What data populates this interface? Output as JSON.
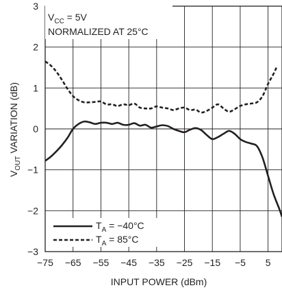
{
  "chart_data": {
    "type": "line",
    "xlabel": "INPUT POWER (dBm)",
    "ylabel": {
      "main": "V",
      "sub": "OUT",
      "rest": " VARIATION (dB)"
    },
    "xlim": [
      -75,
      10
    ],
    "ylim": [
      -3,
      3
    ],
    "x_ticks": [
      -75,
      -65,
      -55,
      -45,
      -35,
      -25,
      -15,
      -5,
      5
    ],
    "x_tick_labels": [
      "−75",
      "−65",
      "−55",
      "−45",
      "−35",
      "−25",
      "−15",
      "−5",
      "5"
    ],
    "y_ticks": [
      -3,
      -2,
      -1,
      0,
      1,
      2,
      3
    ],
    "y_tick_labels": [
      "−3",
      "−2",
      "−1",
      "0",
      "1",
      "2",
      "3"
    ],
    "grid": true,
    "annotations": {
      "vcc": {
        "main": "V",
        "sub": "CC",
        "rest": " = 5V"
      },
      "normalized": "NORMALIZED AT 25°C"
    },
    "legend_placement": "bottom-left",
    "series": [
      {
        "name": {
          "main": "T",
          "sub": "A",
          "rest": " = −40°C"
        },
        "style": "solid",
        "color": "#231f20",
        "x": [
          -75,
          -73,
          -71,
          -69,
          -67,
          -65,
          -63,
          -61,
          -59,
          -57,
          -55,
          -53,
          -51,
          -49,
          -47,
          -45,
          -43,
          -41,
          -39,
          -37,
          -35,
          -33,
          -31,
          -29,
          -27,
          -25,
          -23,
          -21,
          -19,
          -17,
          -15,
          -13,
          -11,
          -9,
          -7,
          -5,
          -3,
          -1,
          1,
          3,
          5,
          7,
          9,
          10
        ],
        "y": [
          -0.78,
          -0.68,
          -0.55,
          -0.4,
          -0.22,
          0.0,
          0.12,
          0.18,
          0.16,
          0.12,
          0.15,
          0.15,
          0.12,
          0.15,
          0.1,
          0.1,
          0.14,
          0.08,
          0.1,
          0.03,
          0.06,
          0.09,
          0.07,
          0.0,
          -0.05,
          -0.08,
          -0.02,
          0.02,
          -0.03,
          -0.15,
          -0.25,
          -0.2,
          -0.12,
          -0.05,
          -0.12,
          -0.25,
          -0.32,
          -0.36,
          -0.42,
          -0.7,
          -1.15,
          -1.6,
          -1.95,
          -2.15
        ]
      },
      {
        "name": {
          "main": "T",
          "sub": "A",
          "rest": " = 85°C"
        },
        "style": "dashed",
        "color": "#231f20",
        "x": [
          -75,
          -73,
          -71,
          -69,
          -67,
          -65,
          -63,
          -61,
          -59,
          -57,
          -55,
          -53,
          -51,
          -49,
          -47,
          -45,
          -43,
          -41,
          -39,
          -37,
          -35,
          -33,
          -31,
          -29,
          -27,
          -25,
          -23,
          -21,
          -19,
          -17,
          -15,
          -13,
          -11,
          -9,
          -7,
          -5,
          -3,
          -1,
          1,
          3,
          5,
          7,
          8
        ],
        "y": [
          1.65,
          1.55,
          1.4,
          1.2,
          0.98,
          0.8,
          0.7,
          0.65,
          0.65,
          0.66,
          0.67,
          0.6,
          0.6,
          0.56,
          0.6,
          0.58,
          0.62,
          0.52,
          0.5,
          0.5,
          0.55,
          0.52,
          0.5,
          0.46,
          0.5,
          0.52,
          0.46,
          0.47,
          0.4,
          0.44,
          0.52,
          0.6,
          0.5,
          0.42,
          0.48,
          0.56,
          0.6,
          0.62,
          0.65,
          0.8,
          1.1,
          1.35,
          1.5
        ]
      }
    ]
  }
}
